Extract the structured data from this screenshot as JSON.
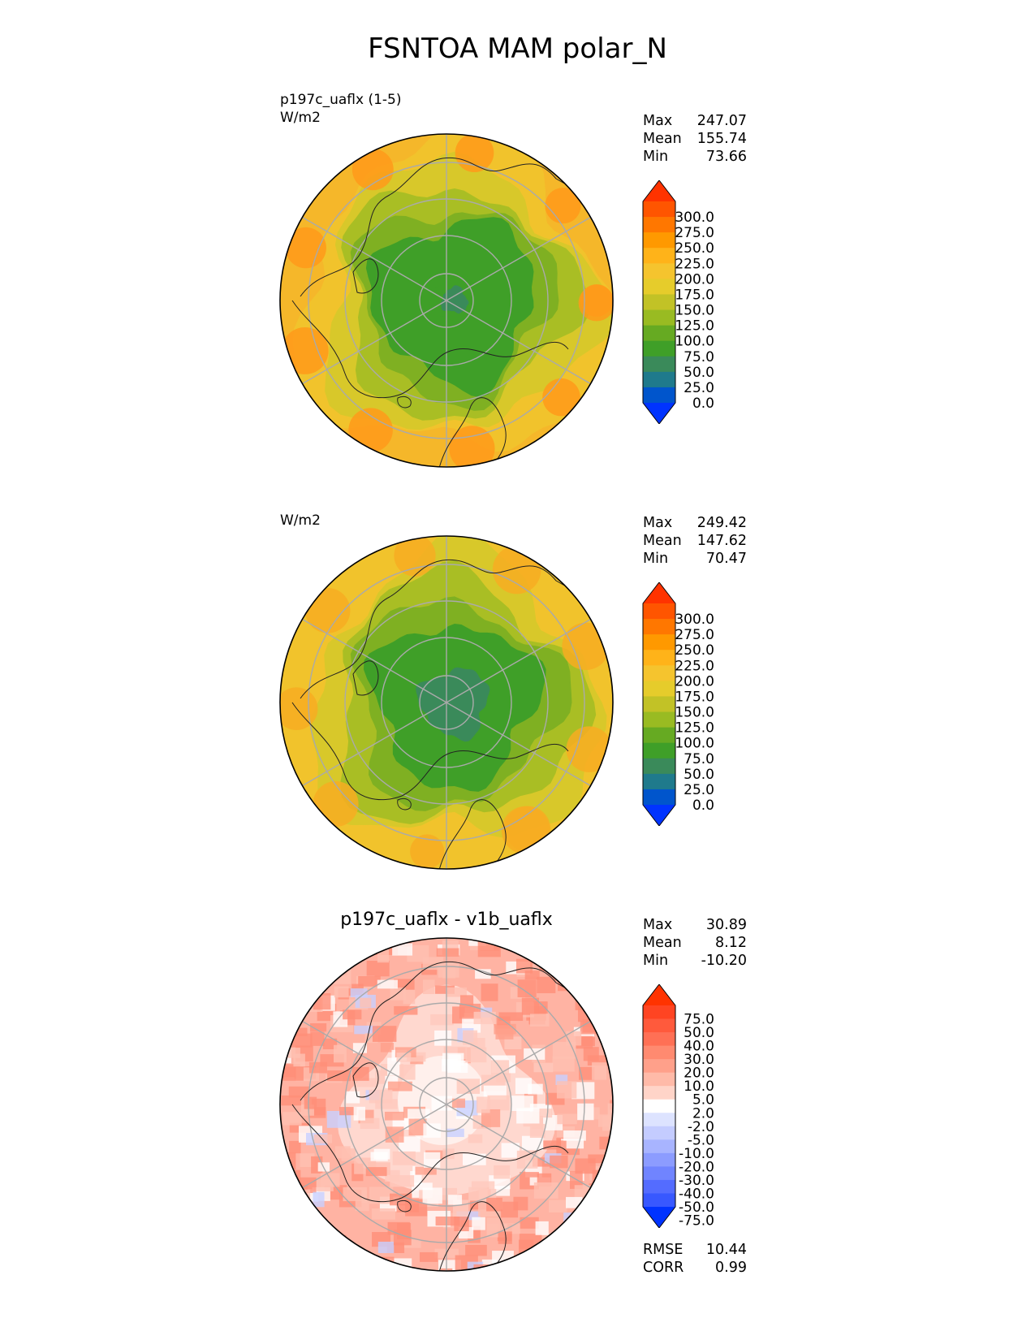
{
  "title": "FSNTOA MAM polar_N",
  "chart_data": [
    {
      "type": "heatmap",
      "projection": "north-polar-stereographic",
      "label1": "p197c_uaflx (1-5)",
      "label2": "W/m2",
      "stats": {
        "Max": "247.07",
        "Mean": "155.74",
        "Min": "73.66"
      },
      "colorbar": {
        "levels": [
          "300.0",
          "275.0",
          "250.0",
          "225.0",
          "200.0",
          "175.0",
          "150.0",
          "125.0",
          "100.0",
          "75.0",
          "50.0",
          "25.0",
          "0.0"
        ],
        "colors": [
          "#ff3300",
          "#ff5500",
          "#ff7700",
          "#ff9900",
          "#ffb319",
          "#f5c42e",
          "#e6cc2b",
          "#c2c226",
          "#99bb22",
          "#66aa22",
          "#3f9f28",
          "#3a8a5a",
          "#1f7a8c",
          "#0055cc",
          "#0033ff"
        ]
      }
    },
    {
      "type": "heatmap",
      "projection": "north-polar-stereographic",
      "label2": "W/m2",
      "stats": {
        "Max": "249.42",
        "Mean": "147.62",
        "Min": "70.47"
      },
      "colorbar": {
        "levels": [
          "300.0",
          "275.0",
          "250.0",
          "225.0",
          "200.0",
          "175.0",
          "150.0",
          "125.0",
          "100.0",
          "75.0",
          "50.0",
          "25.0",
          "0.0"
        ],
        "colors": [
          "#ff3300",
          "#ff5500",
          "#ff7700",
          "#ff9900",
          "#ffb319",
          "#f5c42e",
          "#e6cc2b",
          "#c2c226",
          "#99bb22",
          "#66aa22",
          "#3f9f28",
          "#3a8a5a",
          "#1f7a8c",
          "#0055cc",
          "#0033ff"
        ]
      }
    },
    {
      "type": "heatmap",
      "projection": "north-polar-stereographic",
      "title": "p197c_uaflx - v1b_uaflx",
      "stats": {
        "Max": "30.89",
        "Mean": "8.12",
        "Min": "-10.20"
      },
      "metrics": {
        "RMSE": "10.44",
        "CORR": "0.99"
      },
      "colorbar": {
        "levels": [
          "75.0",
          "50.0",
          "40.0",
          "30.0",
          "20.0",
          "10.0",
          "5.0",
          "2.0",
          "-2.0",
          "-5.0",
          "-10.0",
          "-20.0",
          "-30.0",
          "-40.0",
          "-50.0",
          "-75.0"
        ],
        "colors": [
          "#ff3300",
          "#ff4422",
          "#ff5a3c",
          "#ff7055",
          "#ff8a70",
          "#ffa08a",
          "#ffbaa8",
          "#ffd4c8",
          "#ffffff",
          "#dde3ff",
          "#c4ccff",
          "#a8b4ff",
          "#8c9cff",
          "#7084ff",
          "#546cff",
          "#3858ff",
          "#0033ff"
        ]
      }
    }
  ]
}
